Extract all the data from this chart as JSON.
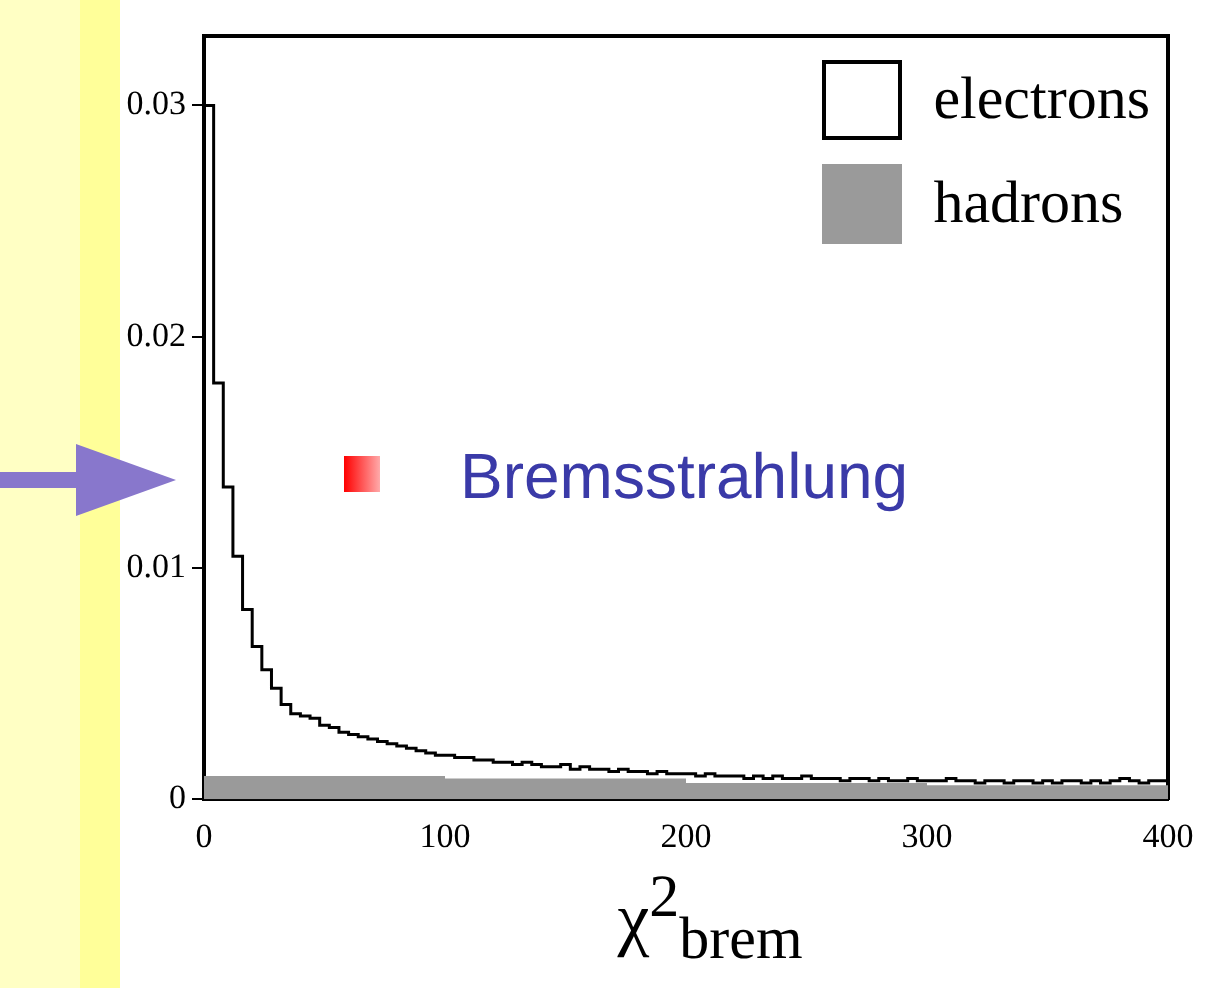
{
  "chart_data": {
    "type": "histogram",
    "xlabel": "χ$^{2}$$_{brem}$",
    "bins": [
      0,
      4,
      8,
      12,
      16,
      20,
      24,
      28,
      32,
      36,
      40,
      44,
      48,
      52,
      56,
      60,
      64,
      68,
      72,
      76,
      80,
      84,
      88,
      92,
      96,
      100,
      104,
      108,
      112,
      116,
      120,
      124,
      128,
      132,
      136,
      140,
      144,
      148,
      152,
      156,
      160,
      164,
      168,
      172,
      176,
      180,
      184,
      188,
      192,
      196,
      200,
      204,
      208,
      212,
      216,
      220,
      224,
      228,
      232,
      236,
      240,
      244,
      248,
      252,
      256,
      260,
      264,
      268,
      272,
      276,
      280,
      284,
      288,
      292,
      296,
      300,
      304,
      308,
      312,
      316,
      320,
      324,
      328,
      332,
      336,
      340,
      344,
      348,
      352,
      356,
      360,
      364,
      368,
      372,
      376,
      380,
      384,
      388,
      392,
      396,
      400
    ],
    "series": [
      {
        "name": "electrons",
        "color": "#000000",
        "values": [
          0.03,
          0.018,
          0.0135,
          0.0105,
          0.0082,
          0.0066,
          0.0056,
          0.0048,
          0.0041,
          0.0037,
          0.0036,
          0.0035,
          0.0032,
          0.0031,
          0.0029,
          0.0028,
          0.0027,
          0.0026,
          0.0025,
          0.0024,
          0.0023,
          0.0022,
          0.0021,
          0.002,
          0.0019,
          0.0019,
          0.0018,
          0.0018,
          0.0017,
          0.0017,
          0.0016,
          0.0016,
          0.0015,
          0.0016,
          0.0015,
          0.0014,
          0.0014,
          0.0015,
          0.0013,
          0.0014,
          0.0013,
          0.0013,
          0.0012,
          0.0013,
          0.0012,
          0.0012,
          0.0011,
          0.0012,
          0.0011,
          0.0011,
          0.0011,
          0.001,
          0.0011,
          0.001,
          0.001,
          0.001,
          0.0009,
          0.001,
          0.0009,
          0.001,
          0.0009,
          0.0009,
          0.001,
          0.0009,
          0.0009,
          0.0009,
          0.0008,
          0.0009,
          0.0009,
          0.0008,
          0.0009,
          0.0008,
          0.0008,
          0.0009,
          0.0008,
          0.0008,
          0.0008,
          0.0009,
          0.0008,
          0.0008,
          0.0007,
          0.0008,
          0.0008,
          0.0007,
          0.0008,
          0.0008,
          0.0007,
          0.0008,
          0.0007,
          0.0008,
          0.0008,
          0.0007,
          0.0008,
          0.0007,
          0.0008,
          0.0009,
          0.0008,
          0.0007,
          0.0008,
          0.0008
        ]
      },
      {
        "name": "hadrons",
        "color": "#9a9a9a",
        "values": [
          0.001,
          0.001,
          0.001,
          0.001,
          0.001,
          0.001,
          0.001,
          0.001,
          0.001,
          0.001,
          0.001,
          0.001,
          0.001,
          0.001,
          0.001,
          0.001,
          0.001,
          0.001,
          0.001,
          0.001,
          0.001,
          0.001,
          0.001,
          0.001,
          0.001,
          0.0009,
          0.0009,
          0.0009,
          0.0009,
          0.0009,
          0.0009,
          0.0009,
          0.0009,
          0.0009,
          0.0009,
          0.0009,
          0.0009,
          0.0009,
          0.0009,
          0.0009,
          0.0009,
          0.0009,
          0.0009,
          0.0009,
          0.0009,
          0.0009,
          0.0009,
          0.0009,
          0.0009,
          0.0009,
          0.0007,
          0.0007,
          0.0007,
          0.0007,
          0.0007,
          0.0007,
          0.0007,
          0.0007,
          0.0007,
          0.0007,
          0.0007,
          0.0007,
          0.0007,
          0.0007,
          0.0007,
          0.0007,
          0.0007,
          0.0007,
          0.0007,
          0.0007,
          0.0007,
          0.0007,
          0.0007,
          0.0007,
          0.0007,
          0.0006,
          0.0006,
          0.0006,
          0.0006,
          0.0006,
          0.0006,
          0.0006,
          0.0006,
          0.0006,
          0.0006,
          0.0006,
          0.0006,
          0.0006,
          0.0006,
          0.0006,
          0.0006,
          0.0006,
          0.0006,
          0.0006,
          0.0006,
          0.0006,
          0.0006,
          0.0006,
          0.0006,
          0.0006
        ]
      }
    ],
    "xlim": [
      0,
      400
    ],
    "xticks": [
      0,
      100,
      200,
      300,
      400
    ],
    "ylim": [
      0,
      0.033
    ],
    "yticks": [
      0,
      0.01,
      0.02,
      0.03
    ],
    "grid": false,
    "legend": "top right",
    "annotations": [
      "Bremsstrahlung"
    ]
  }
}
